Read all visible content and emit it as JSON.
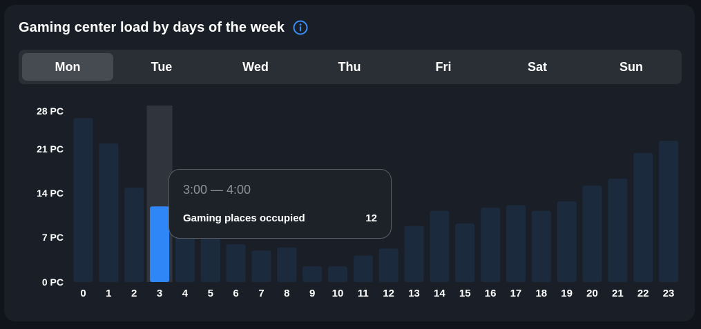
{
  "header": {
    "title": "Gaming center load by days of the week",
    "info_icon": "info-icon"
  },
  "tabs": [
    {
      "label": "Mon",
      "active": true
    },
    {
      "label": "Tue",
      "active": false
    },
    {
      "label": "Wed",
      "active": false
    },
    {
      "label": "Thu",
      "active": false
    },
    {
      "label": "Fri",
      "active": false
    },
    {
      "label": "Sat",
      "active": false
    },
    {
      "label": "Sun",
      "active": false
    }
  ],
  "tooltip": {
    "time": "3:00 — 4:00",
    "label": "Gaming places occupied",
    "value": "12"
  },
  "colors": {
    "bar": "#1c2a3d",
    "bar_highlight": "#2f87f7",
    "hover_column": "#30353d",
    "accent": "#3a8ef6"
  },
  "chart_data": {
    "type": "bar",
    "categories": [
      "0",
      "1",
      "2",
      "3",
      "4",
      "5",
      "6",
      "7",
      "8",
      "9",
      "10",
      "11",
      "12",
      "13",
      "14",
      "15",
      "16",
      "17",
      "18",
      "19",
      "20",
      "21",
      "22",
      "23"
    ],
    "values": [
      26,
      22,
      15,
      12,
      8,
      7,
      6,
      5,
      5.5,
      2.5,
      2.5,
      4.2,
      5.3,
      8.9,
      11.3,
      9.3,
      11.8,
      12.2,
      11.3,
      12.8,
      15.3,
      16.4,
      20.5,
      22.4
    ],
    "highlighted_index": 3,
    "yticks": [
      0,
      7,
      14,
      21,
      28
    ],
    "ytick_labels": [
      "0 PC",
      "7 PC",
      "14 PC",
      "21 PC",
      "28 PC"
    ],
    "ylim": [
      0,
      28
    ],
    "grid": false
  }
}
